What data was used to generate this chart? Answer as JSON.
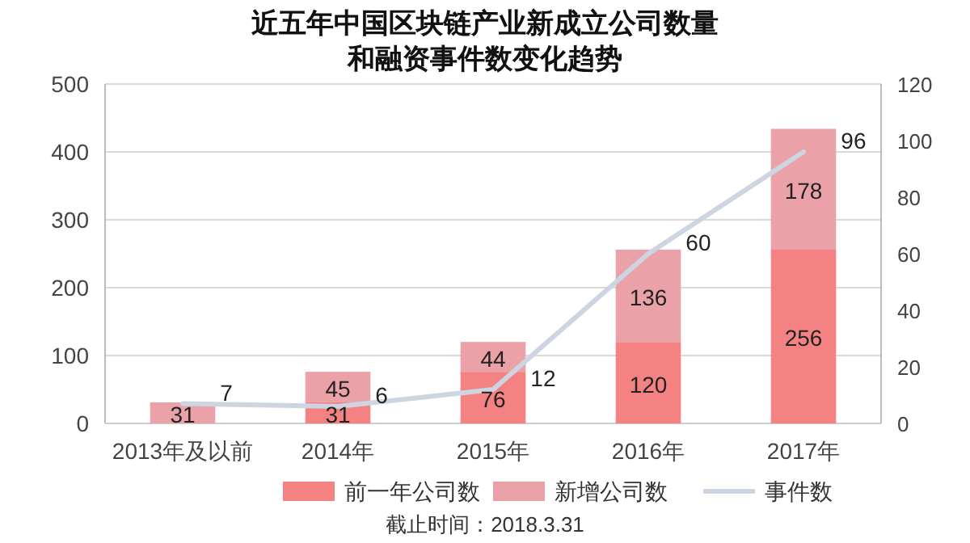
{
  "chart_data": {
    "type": "bar",
    "title": "近五年中国区块链产业新成立公司数量和融资事件数变化趋势",
    "categories": [
      "2013年及以前",
      "2014年",
      "2015年",
      "2016年",
      "2017年"
    ],
    "stacked": true,
    "series": [
      {
        "name": "前一年公司数",
        "color": "#f58283",
        "values": [
          null,
          31,
          76,
          120,
          256
        ]
      },
      {
        "name": "新增公司数",
        "color": "#eaa1a7",
        "values": [
          31,
          45,
          44,
          136,
          178
        ]
      },
      {
        "name": "事件数",
        "type": "line",
        "axis": "y2",
        "color": "#ccd5e0",
        "values": [
          7,
          6,
          12,
          60,
          96
        ]
      }
    ],
    "ylim": [
      0,
      500
    ],
    "yticks": [
      0,
      100,
      200,
      300,
      400,
      500
    ],
    "y2lim": [
      0,
      120
    ],
    "y2ticks": [
      0,
      20,
      40,
      60,
      80,
      100,
      120
    ],
    "grid": "y",
    "legend": "bottom",
    "data_labels": true,
    "marker": "none",
    "annotations": [
      "截止时间：2018.3.31"
    ]
  }
}
